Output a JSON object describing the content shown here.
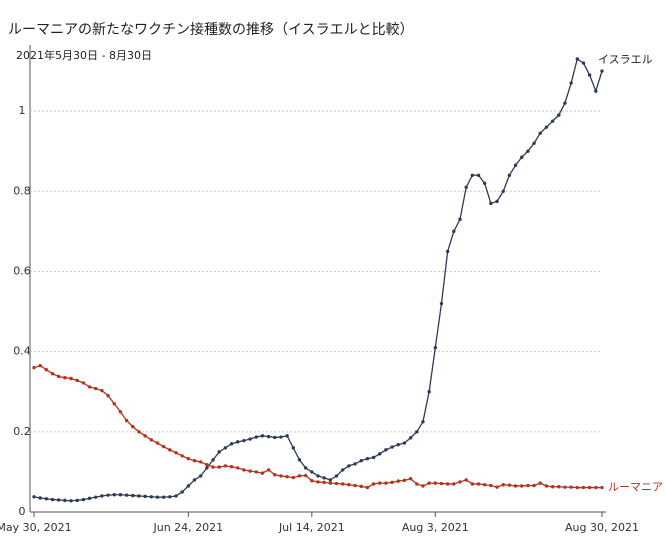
{
  "chart_data": {
    "type": "line",
    "title": "ルーマニアの新たなワクチン接種数の推移（イスラエルと比較）",
    "subtitle": "2021年5月30日 - 8月30日",
    "x": [
      "2021-05-30",
      "2021-05-31",
      "2021-06-01",
      "2021-06-02",
      "2021-06-03",
      "2021-06-04",
      "2021-06-05",
      "2021-06-06",
      "2021-06-07",
      "2021-06-08",
      "2021-06-09",
      "2021-06-10",
      "2021-06-11",
      "2021-06-12",
      "2021-06-13",
      "2021-06-14",
      "2021-06-15",
      "2021-06-16",
      "2021-06-17",
      "2021-06-18",
      "2021-06-19",
      "2021-06-20",
      "2021-06-21",
      "2021-06-22",
      "2021-06-23",
      "2021-06-24",
      "2021-06-25",
      "2021-06-26",
      "2021-06-27",
      "2021-06-28",
      "2021-06-29",
      "2021-06-30",
      "2021-07-01",
      "2021-07-02",
      "2021-07-03",
      "2021-07-04",
      "2021-07-05",
      "2021-07-06",
      "2021-07-07",
      "2021-07-08",
      "2021-07-09",
      "2021-07-10",
      "2021-07-11",
      "2021-07-12",
      "2021-07-13",
      "2021-07-14",
      "2021-07-15",
      "2021-07-16",
      "2021-07-17",
      "2021-07-18",
      "2021-07-19",
      "2021-07-20",
      "2021-07-21",
      "2021-07-22",
      "2021-07-23",
      "2021-07-24",
      "2021-07-25",
      "2021-07-26",
      "2021-07-27",
      "2021-07-28",
      "2021-07-29",
      "2021-07-30",
      "2021-07-31",
      "2021-08-01",
      "2021-08-02",
      "2021-08-03",
      "2021-08-04",
      "2021-08-05",
      "2021-08-06",
      "2021-08-07",
      "2021-08-08",
      "2021-08-09",
      "2021-08-10",
      "2021-08-11",
      "2021-08-12",
      "2021-08-13",
      "2021-08-14",
      "2021-08-15",
      "2021-08-16",
      "2021-08-17",
      "2021-08-18",
      "2021-08-19",
      "2021-08-20",
      "2021-08-21",
      "2021-08-22",
      "2021-08-23",
      "2021-08-24",
      "2021-08-25",
      "2021-08-26",
      "2021-08-27",
      "2021-08-28",
      "2021-08-29",
      "2021-08-30"
    ],
    "xlim": [
      "2021-05-30",
      "2021-08-30"
    ],
    "xticks": [
      {
        "value": "2021-05-30",
        "label": "May 30, 2021"
      },
      {
        "value": "2021-06-24",
        "label": "Jun 24, 2021"
      },
      {
        "value": "2021-07-14",
        "label": "Jul 14, 2021"
      },
      {
        "value": "2021-08-03",
        "label": "Aug 3, 2021"
      },
      {
        "value": "2021-08-30",
        "label": "Aug 30, 2021"
      }
    ],
    "ylim": [
      0,
      1.14
    ],
    "yticks": [
      0,
      0.2,
      0.4,
      0.6,
      0.8,
      1
    ],
    "grid": true,
    "series": [
      {
        "name": "イスラエル",
        "color": "#2e3b55",
        "values": [
          0.038,
          0.035,
          0.033,
          0.031,
          0.03,
          0.029,
          0.028,
          0.029,
          0.031,
          0.034,
          0.037,
          0.04,
          0.042,
          0.043,
          0.043,
          0.042,
          0.041,
          0.04,
          0.039,
          0.038,
          0.037,
          0.037,
          0.038,
          0.04,
          0.05,
          0.065,
          0.08,
          0.09,
          0.11,
          0.13,
          0.15,
          0.16,
          0.17,
          0.175,
          0.178,
          0.182,
          0.187,
          0.19,
          0.188,
          0.186,
          0.187,
          0.19,
          0.16,
          0.13,
          0.11,
          0.1,
          0.09,
          0.085,
          0.08,
          0.09,
          0.105,
          0.115,
          0.12,
          0.128,
          0.133,
          0.136,
          0.145,
          0.155,
          0.162,
          0.168,
          0.172,
          0.185,
          0.2,
          0.225,
          0.3,
          0.41,
          0.52,
          0.65,
          0.7,
          0.73,
          0.81,
          0.84,
          0.84,
          0.82,
          0.77,
          0.775,
          0.8,
          0.84,
          0.865,
          0.885,
          0.9,
          0.92,
          0.945,
          0.96,
          0.975,
          0.99,
          1.02,
          1.07,
          1.13,
          1.12,
          1.09,
          1.05,
          1.1
        ]
      },
      {
        "name": "ルーマニア",
        "color": "#b5321b",
        "values": [
          0.36,
          0.365,
          0.355,
          0.345,
          0.338,
          0.335,
          0.333,
          0.328,
          0.322,
          0.312,
          0.308,
          0.303,
          0.29,
          0.27,
          0.25,
          0.228,
          0.213,
          0.2,
          0.19,
          0.18,
          0.172,
          0.163,
          0.155,
          0.148,
          0.14,
          0.133,
          0.128,
          0.125,
          0.118,
          0.112,
          0.112,
          0.115,
          0.113,
          0.11,
          0.105,
          0.102,
          0.1,
          0.097,
          0.105,
          0.093,
          0.09,
          0.088,
          0.086,
          0.09,
          0.091,
          0.078,
          0.075,
          0.074,
          0.072,
          0.071,
          0.07,
          0.068,
          0.066,
          0.064,
          0.061,
          0.07,
          0.072,
          0.072,
          0.074,
          0.077,
          0.079,
          0.083,
          0.07,
          0.065,
          0.072,
          0.072,
          0.071,
          0.07,
          0.07,
          0.075,
          0.08,
          0.07,
          0.07,
          0.068,
          0.066,
          0.062,
          0.068,
          0.067,
          0.065,
          0.065,
          0.066,
          0.066,
          0.072,
          0.065,
          0.063,
          0.063,
          0.062,
          0.062,
          0.061,
          0.061,
          0.061,
          0.061,
          0.061
        ]
      }
    ]
  }
}
